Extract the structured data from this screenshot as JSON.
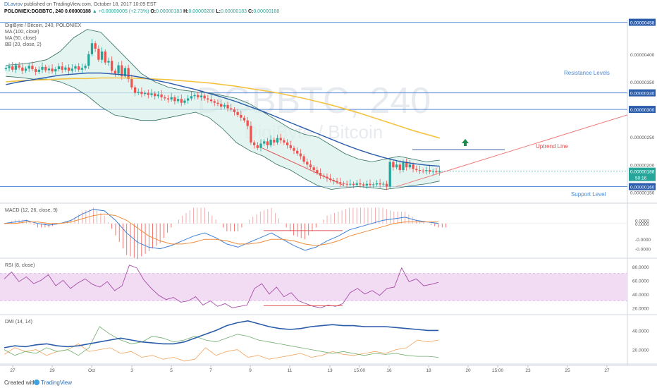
{
  "header": {
    "user": "DLavrov",
    "published": "published on TradingView.com, October 18, 2017 10:09 EST",
    "symbol": "POLONIEX:DGBBTC, 240",
    "last": "0.00000188",
    "change": "+0.00000005 (+2.73%)",
    "o_label": "O:",
    "o": "0.00000183",
    "h_label": "H:",
    "h": "0.00000200",
    "l_label": "L:",
    "l": "0.00000183",
    "c_label": "C:",
    "c": "0.00000188"
  },
  "legend": [
    "DigiByte / Bitcoin, 240, POLONIEX",
    "MA (100, close)",
    "MA (50, close)",
    "BB (20, close, 2)"
  ],
  "watermark": {
    "big": "DGBBTC, 240",
    "small": "DigiByte / Bitcoin"
  },
  "annotations": {
    "resistance": "Resistance Levels",
    "uptrend": "Uptrend Line",
    "support": "Support Level"
  },
  "footer": {
    "created_with": "Created with",
    "brand": "TradingView"
  },
  "colors": {
    "up": "#26a69a",
    "down": "#ef5350",
    "ma100": "#f5c342",
    "ma50": "#2a5caa",
    "bb": "#2f6e5e",
    "level": "#5b8dd6",
    "uptrend": "#ef7d7d"
  },
  "chart_data": [
    {
      "type": "candlestick",
      "title": "DigiByte / Bitcoin, 240, POLONIEX",
      "ylim": [
        1.3e-06,
        4.6e-06
      ],
      "price_axis_labels": [
        "0.00000458",
        "0.00000400",
        "0.00000350",
        "0.00000330",
        "0.00000300",
        "0.00000250",
        "0.00000200",
        "0.00000188",
        "0.00000160",
        "0.00000150"
      ],
      "last_price_tag": {
        "price": "0.00000188",
        "countdown": "50:16"
      },
      "horizontal_levels": [
        4.58e-06,
        3.3e-06,
        3e-06,
        1.6e-06
      ],
      "close": [
        3.75,
        3.78,
        3.72,
        3.8,
        3.76,
        3.7,
        3.74,
        3.79,
        3.73,
        3.68,
        3.72,
        3.77,
        3.71,
        3.74,
        3.69,
        3.73,
        3.78,
        3.72,
        3.76,
        3.7,
        3.74,
        3.78,
        3.72,
        3.75,
        3.79,
        4.0,
        4.2,
        4.1,
        3.9,
        4.05,
        3.85,
        3.88,
        3.7,
        3.65,
        3.8,
        3.6,
        3.75,
        3.55,
        3.4,
        3.3,
        3.32,
        3.28,
        3.3,
        3.26,
        3.29,
        3.24,
        3.27,
        3.22,
        3.2,
        3.18,
        3.22,
        3.15,
        3.19,
        3.12,
        3.16,
        3.2,
        3.24,
        3.26,
        3.22,
        3.25,
        3.2,
        3.18,
        3.15,
        3.12,
        3.1,
        3.05,
        3.08,
        3.02,
        3.0,
        2.95,
        2.9,
        2.85,
        2.8,
        2.7,
        2.4,
        2.35,
        2.3,
        2.38,
        2.42,
        2.35,
        2.45,
        2.4,
        2.48,
        2.44,
        2.4,
        2.35,
        2.3,
        2.25,
        2.2,
        2.15,
        2.05,
        2.0,
        1.95,
        1.9,
        1.85,
        1.8,
        1.78,
        1.75,
        1.72,
        1.7,
        1.68,
        1.66,
        1.65,
        1.64,
        1.65,
        1.63,
        1.66,
        1.64,
        1.62,
        1.65,
        1.63,
        1.64,
        1.66,
        1.64,
        1.65,
        1.6,
        2.05,
        1.95,
        2.0,
        1.9,
        2.05,
        1.95,
        2.0,
        1.92,
        1.9,
        1.89,
        1.88,
        1.9,
        1.87,
        1.88,
        1.86,
        1.88
      ],
      "ma100": {
        "from": 0,
        "values": [
          3.5,
          3.52,
          3.53,
          3.54,
          3.55,
          3.56,
          3.56,
          3.57,
          3.57,
          3.57,
          3.56,
          3.55,
          3.54,
          3.52,
          3.5,
          3.48,
          3.45,
          3.42,
          3.38,
          3.34,
          3.3,
          3.25,
          3.2,
          3.14,
          3.08,
          3.01,
          2.94,
          2.86,
          2.78,
          2.7,
          2.62,
          2.55,
          2.48
        ]
      },
      "ma50": {
        "from": 0,
        "values": [
          3.45,
          3.5,
          3.54,
          3.58,
          3.62,
          3.64,
          3.66,
          3.66,
          3.64,
          3.62,
          3.58,
          3.53,
          3.48,
          3.42,
          3.36,
          3.29,
          3.22,
          3.14,
          3.05,
          2.96,
          2.86,
          2.76,
          2.66,
          2.56,
          2.46,
          2.36,
          2.27,
          2.19,
          2.12,
          2.06,
          2.02,
          1.99,
          1.97
        ]
      },
      "bb_upper": {
        "from": 0,
        "values": [
          3.8,
          3.82,
          3.85,
          3.9,
          4.05,
          4.3,
          4.45,
          4.4,
          4.15,
          3.9,
          3.65,
          3.5,
          3.4,
          3.35,
          3.32,
          3.3,
          3.25,
          3.2,
          3.1,
          2.95,
          2.8,
          2.65,
          2.55,
          2.5,
          2.35,
          2.2,
          2.1,
          2.05,
          2.1,
          2.15,
          2.1,
          2.05,
          2.08
        ]
      },
      "bb_lower": {
        "from": 0,
        "values": [
          3.6,
          3.58,
          3.55,
          3.55,
          3.5,
          3.4,
          3.25,
          3.05,
          2.9,
          2.85,
          2.8,
          2.8,
          2.85,
          2.9,
          2.95,
          2.85,
          2.65,
          2.4,
          2.25,
          2.15,
          2.0,
          1.9,
          1.75,
          1.62,
          1.55,
          1.58,
          1.6,
          1.58,
          1.55,
          1.58,
          1.62,
          1.65,
          1.7
        ]
      },
      "uptrend_line": {
        "from": 1.6e-06,
        "to": 2.9e-06
      }
    },
    {
      "type": "line",
      "title": "MACD (12, 26, close, 9)",
      "ylim": [
        -2.2e-07,
        1.2e-07
      ],
      "tick_labels": [
        "0.0000",
        "0.0000",
        "-0.0000",
        "-0.0000"
      ],
      "macd": [
        0.0,
        0.01,
        0.02,
        0.0,
        -0.01,
        0.0,
        0.02,
        0.06,
        0.09,
        0.08,
        0.02,
        -0.06,
        -0.12,
        -0.15,
        -0.16,
        -0.14,
        -0.11,
        -0.08,
        -0.06,
        -0.09,
        -0.13,
        -0.15,
        -0.12,
        -0.09,
        -0.06,
        -0.1,
        -0.14,
        -0.17,
        -0.15,
        -0.11,
        -0.08,
        -0.04,
        -0.02,
        0.0,
        0.02,
        0.03,
        0.04,
        0.02,
        0.01,
        0.0
      ],
      "signal": [
        0.0,
        0.0,
        0.01,
        0.01,
        0.0,
        0.0,
        0.01,
        0.03,
        0.05,
        0.06,
        0.05,
        0.02,
        -0.03,
        -0.08,
        -0.11,
        -0.13,
        -0.13,
        -0.12,
        -0.1,
        -0.1,
        -0.11,
        -0.13,
        -0.13,
        -0.12,
        -0.1,
        -0.1,
        -0.11,
        -0.13,
        -0.14,
        -0.13,
        -0.11,
        -0.08,
        -0.06,
        -0.04,
        -0.02,
        0.0,
        0.01,
        0.01,
        0.01,
        0.01
      ]
    },
    {
      "type": "line",
      "title": "RSI (8, close)",
      "ylim": [
        10,
        90
      ],
      "band": [
        30,
        70
      ],
      "tick_labels": [
        "80.0000",
        "60.0000",
        "40.0000",
        "20.0000"
      ],
      "values": [
        62,
        72,
        58,
        65,
        55,
        60,
        68,
        52,
        60,
        48,
        56,
        62,
        54,
        50,
        58,
        45,
        52,
        82,
        78,
        60,
        48,
        38,
        32,
        35,
        28,
        30,
        36,
        24,
        30,
        22,
        26,
        20,
        22,
        24,
        48,
        55,
        40,
        50,
        36,
        42,
        30,
        26,
        22,
        20,
        24,
        22,
        26,
        42,
        48,
        40,
        45,
        38,
        48,
        50,
        78,
        58,
        62,
        52,
        54,
        57
      ]
    },
    {
      "type": "line",
      "title": "DMI (14, 14)",
      "ylim": [
        5,
        55
      ],
      "tick_labels": [
        "40.0000",
        "20.0000"
      ],
      "adx": [
        22,
        24,
        23,
        25,
        26,
        24,
        23,
        24,
        26,
        28,
        30,
        32,
        30,
        28,
        27,
        26,
        26,
        28,
        32,
        36,
        40,
        45,
        48,
        50,
        47,
        44,
        42,
        41,
        42,
        44,
        45,
        46,
        45,
        45,
        44,
        44,
        44,
        43,
        42,
        41,
        40,
        40
      ],
      "plus_di": [
        15,
        22,
        18,
        20,
        14,
        18,
        20,
        26,
        18,
        20,
        22,
        16,
        18,
        12,
        14,
        10,
        12,
        8,
        10,
        22,
        14,
        18,
        20,
        12,
        14,
        10,
        12,
        14,
        16,
        12,
        14,
        18,
        15,
        14,
        16,
        18,
        16,
        20,
        22,
        30,
        28,
        30
      ],
      "minus_di": [
        20,
        14,
        18,
        16,
        22,
        18,
        20,
        14,
        22,
        44,
        36,
        30,
        26,
        28,
        34,
        32,
        28,
        30,
        34,
        30,
        28,
        32,
        36,
        34,
        30,
        28,
        26,
        24,
        22,
        20,
        18,
        16,
        18,
        16,
        14,
        16,
        15,
        16,
        14,
        13,
        13,
        12
      ]
    }
  ],
  "time_axis": [
    "27",
    "29",
    "Oct",
    "3",
    "5",
    "7",
    "9",
    "11",
    "13",
    "15:00",
    "16",
    "18",
    "20",
    "15:00",
    "23",
    "25",
    "27"
  ]
}
